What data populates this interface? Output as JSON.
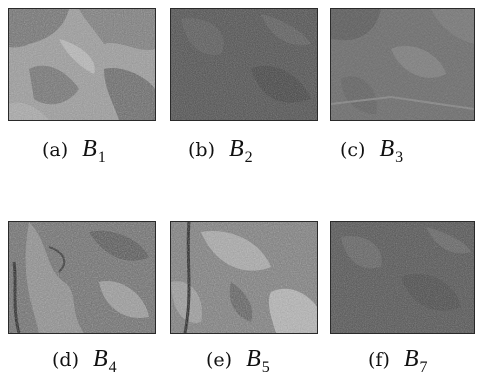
{
  "figure": {
    "panels": [
      {
        "id": "a",
        "tag": "(a)",
        "symbol": "B",
        "subscript": "1"
      },
      {
        "id": "b",
        "tag": "(b)",
        "symbol": "B",
        "subscript": "2"
      },
      {
        "id": "c",
        "tag": "(c)",
        "symbol": "B",
        "subscript": "3"
      },
      {
        "id": "d",
        "tag": "(d)",
        "symbol": "B",
        "subscript": "4"
      },
      {
        "id": "e",
        "tag": "(e)",
        "symbol": "B",
        "subscript": "5"
      },
      {
        "id": "f",
        "tag": "(f)",
        "symbol": "B",
        "subscript": "7"
      }
    ]
  }
}
